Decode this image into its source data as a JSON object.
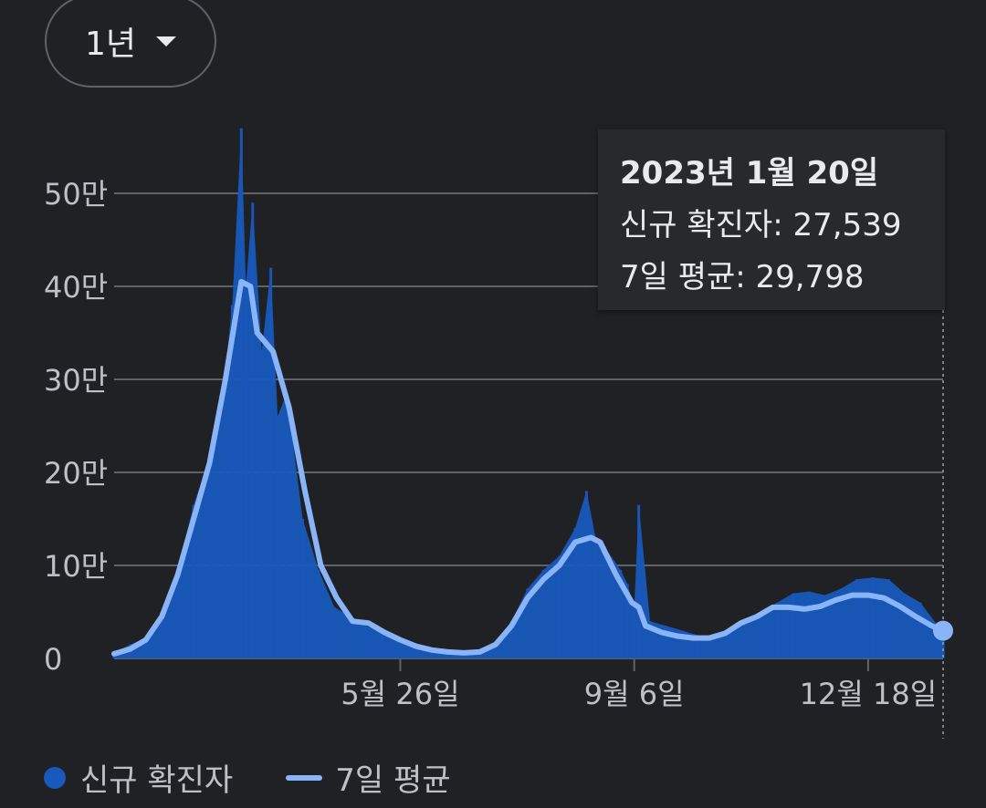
{
  "range_selector": {
    "label": "1년"
  },
  "tooltip": {
    "date": "2023년 1월 20일",
    "cases_label": "신규 확진자",
    "cases_value": "27,539",
    "avg_label": "7일 평균",
    "avg_value": "29,798"
  },
  "legend": {
    "cases": "신규 확진자",
    "average": "7일 평균"
  },
  "colors": {
    "bars": "#185abc",
    "average": "#8ab4f8",
    "grid": "#5f6368",
    "background": "#202124"
  },
  "chart_data": {
    "type": "bar",
    "title": "",
    "xlabel": "",
    "ylabel": "",
    "ylim": [
      0,
      570000
    ],
    "y_ticks": [
      {
        "value": 0,
        "label": "0"
      },
      {
        "value": 100000,
        "label": "10만"
      },
      {
        "value": 200000,
        "label": "20만"
      },
      {
        "value": 300000,
        "label": "30만"
      },
      {
        "value": 400000,
        "label": "40만"
      },
      {
        "value": 500000,
        "label": "50만"
      }
    ],
    "x_ticks": [
      {
        "date": "2022-05-26",
        "label": "5월 26일"
      },
      {
        "date": "2022-09-06",
        "label": "9월 6일"
      },
      {
        "date": "2022-12-18",
        "label": "12월 18일"
      }
    ],
    "x_range": [
      "2022-01-20",
      "2023-01-20"
    ],
    "series": [
      {
        "name": "신규 확진자",
        "type": "bar",
        "points": [
          [
            "2022-01-20",
            6000
          ],
          [
            "2022-01-27",
            15000
          ],
          [
            "2022-02-03",
            22000
          ],
          [
            "2022-02-10",
            50000
          ],
          [
            "2022-02-17",
            95000
          ],
          [
            "2022-02-24",
            165000
          ],
          [
            "2022-03-03",
            215000
          ],
          [
            "2022-03-10",
            310000
          ],
          [
            "2022-03-13",
            380000
          ],
          [
            "2022-03-17",
            570000
          ],
          [
            "2022-03-19",
            400000
          ],
          [
            "2022-03-22",
            490000
          ],
          [
            "2022-03-26",
            330000
          ],
          [
            "2022-03-30",
            420000
          ],
          [
            "2022-04-02",
            260000
          ],
          [
            "2022-04-06",
            285000
          ],
          [
            "2022-04-13",
            150000
          ],
          [
            "2022-04-20",
            95000
          ],
          [
            "2022-04-27",
            55000
          ],
          [
            "2022-05-04",
            45000
          ],
          [
            "2022-05-11",
            35000
          ],
          [
            "2022-05-18",
            28000
          ],
          [
            "2022-05-26",
            20000
          ],
          [
            "2022-06-02",
            13000
          ],
          [
            "2022-06-09",
            10000
          ],
          [
            "2022-06-16",
            8000
          ],
          [
            "2022-06-23",
            7000
          ],
          [
            "2022-06-30",
            9000
          ],
          [
            "2022-07-07",
            18000
          ],
          [
            "2022-07-14",
            40000
          ],
          [
            "2022-07-21",
            75000
          ],
          [
            "2022-07-28",
            95000
          ],
          [
            "2022-08-04",
            110000
          ],
          [
            "2022-08-11",
            140000
          ],
          [
            "2022-08-16",
            180000
          ],
          [
            "2022-08-20",
            130000
          ],
          [
            "2022-08-24",
            120000
          ],
          [
            "2022-08-31",
            95000
          ],
          [
            "2022-09-03",
            80000
          ],
          [
            "2022-09-06",
            55000
          ],
          [
            "2022-09-08",
            165000
          ],
          [
            "2022-09-13",
            40000
          ],
          [
            "2022-09-20",
            35000
          ],
          [
            "2022-09-27",
            30000
          ],
          [
            "2022-10-04",
            25000
          ],
          [
            "2022-10-11",
            22000
          ],
          [
            "2022-10-18",
            27000
          ],
          [
            "2022-10-25",
            40000
          ],
          [
            "2022-11-01",
            50000
          ],
          [
            "2022-11-08",
            60000
          ],
          [
            "2022-11-15",
            70000
          ],
          [
            "2022-11-22",
            72000
          ],
          [
            "2022-11-29",
            68000
          ],
          [
            "2022-12-06",
            75000
          ],
          [
            "2022-12-13",
            85000
          ],
          [
            "2022-12-20",
            87000
          ],
          [
            "2022-12-27",
            85000
          ],
          [
            "2023-01-03",
            70000
          ],
          [
            "2023-01-10",
            60000
          ],
          [
            "2023-01-20",
            27539
          ]
        ]
      },
      {
        "name": "7일 평균",
        "type": "line",
        "points": [
          [
            "2022-01-20",
            5000
          ],
          [
            "2022-01-27",
            10000
          ],
          [
            "2022-02-03",
            20000
          ],
          [
            "2022-02-10",
            45000
          ],
          [
            "2022-02-17",
            90000
          ],
          [
            "2022-02-24",
            150000
          ],
          [
            "2022-03-03",
            210000
          ],
          [
            "2022-03-10",
            300000
          ],
          [
            "2022-03-17",
            405000
          ],
          [
            "2022-03-21",
            400000
          ],
          [
            "2022-03-24",
            350000
          ],
          [
            "2022-03-31",
            330000
          ],
          [
            "2022-04-07",
            270000
          ],
          [
            "2022-04-14",
            180000
          ],
          [
            "2022-04-21",
            100000
          ],
          [
            "2022-04-28",
            65000
          ],
          [
            "2022-05-05",
            40000
          ],
          [
            "2022-05-12",
            38000
          ],
          [
            "2022-05-19",
            28000
          ],
          [
            "2022-05-26",
            20000
          ],
          [
            "2022-06-02",
            13000
          ],
          [
            "2022-06-09",
            9000
          ],
          [
            "2022-06-16",
            7000
          ],
          [
            "2022-06-23",
            6000
          ],
          [
            "2022-06-30",
            7000
          ],
          [
            "2022-07-07",
            15000
          ],
          [
            "2022-07-14",
            35000
          ],
          [
            "2022-07-21",
            65000
          ],
          [
            "2022-07-28",
            85000
          ],
          [
            "2022-08-04",
            100000
          ],
          [
            "2022-08-11",
            125000
          ],
          [
            "2022-08-18",
            130000
          ],
          [
            "2022-08-22",
            125000
          ],
          [
            "2022-08-29",
            90000
          ],
          [
            "2022-09-05",
            60000
          ],
          [
            "2022-09-08",
            55000
          ],
          [
            "2022-09-11",
            35000
          ],
          [
            "2022-09-18",
            28000
          ],
          [
            "2022-09-25",
            24000
          ],
          [
            "2022-10-02",
            22000
          ],
          [
            "2022-10-09",
            22000
          ],
          [
            "2022-10-16",
            27000
          ],
          [
            "2022-10-23",
            38000
          ],
          [
            "2022-10-30",
            45000
          ],
          [
            "2022-11-06",
            55000
          ],
          [
            "2022-11-13",
            55000
          ],
          [
            "2022-11-20",
            53000
          ],
          [
            "2022-11-27",
            56000
          ],
          [
            "2022-12-04",
            63000
          ],
          [
            "2022-12-11",
            68000
          ],
          [
            "2022-12-18",
            68000
          ],
          [
            "2022-12-25",
            65000
          ],
          [
            "2023-01-01",
            56000
          ],
          [
            "2023-01-08",
            45000
          ],
          [
            "2023-01-15",
            35000
          ],
          [
            "2023-01-20",
            29798
          ]
        ]
      }
    ],
    "selected": {
      "date": "2023-01-20",
      "cases": 27539,
      "average": 29798
    },
    "grid": true,
    "legend_position": "bottom-left"
  }
}
